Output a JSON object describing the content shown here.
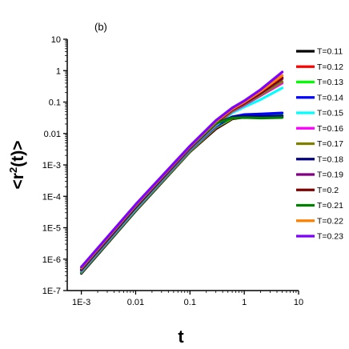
{
  "chart_data": {
    "type": "line",
    "panel_label": "(b)",
    "xlabel": "t",
    "ylabel": "<r²(t)>",
    "ylabel_parts": {
      "base": "<r",
      "sup": "2",
      "tail": "(t)>"
    },
    "x_scale": "log",
    "y_scale": "log",
    "xlim": [
      0.00055,
      10
    ],
    "ylim": [
      1e-07,
      10
    ],
    "x_ticks": [
      0.001,
      0.01,
      0.1,
      1,
      10
    ],
    "x_tick_labels": [
      "1E-3",
      "0.01",
      "0.1",
      "1",
      "10"
    ],
    "y_ticks": [
      1e-07,
      1e-06,
      1e-05,
      0.0001,
      0.001,
      0.01,
      0.1,
      1,
      10
    ],
    "y_tick_labels": [
      "1E-7",
      "1E-6",
      "1E-5",
      "1E-4",
      "1E-3",
      "0.01",
      "0.1",
      "1",
      "10"
    ],
    "grid": false,
    "legend_position": "right",
    "x": [
      0.001,
      0.01,
      0.1,
      0.3,
      0.6,
      1,
      2,
      5
    ],
    "series": [
      {
        "name": "T=0.11",
        "color": "#000000",
        "values": [
          3.5e-07,
          3.4e-05,
          0.0026,
          0.014,
          0.029,
          0.033,
          0.033,
          0.033
        ]
      },
      {
        "name": "T=0.12",
        "color": "#ff0000",
        "values": [
          3.7e-07,
          3.6e-05,
          0.0027,
          0.015,
          0.03,
          0.034,
          0.035,
          0.036
        ]
      },
      {
        "name": "T=0.13",
        "color": "#00ff00",
        "values": [
          3.8e-07,
          3.7e-05,
          0.0028,
          0.016,
          0.031,
          0.036,
          0.037,
          0.038
        ]
      },
      {
        "name": "T=0.14",
        "color": "#0000ff",
        "values": [
          4e-07,
          3.9e-05,
          0.003,
          0.017,
          0.034,
          0.04,
          0.042,
          0.045
        ]
      },
      {
        "name": "T=0.15",
        "color": "#00ffff",
        "values": [
          4.1e-07,
          4e-05,
          0.0031,
          0.018,
          0.045,
          0.07,
          0.12,
          0.28
        ]
      },
      {
        "name": "T=0.16",
        "color": "#ff00ff",
        "values": [
          4.3e-07,
          4.2e-05,
          0.0032,
          0.019,
          0.05,
          0.08,
          0.16,
          0.4
        ]
      },
      {
        "name": "T=0.17",
        "color": "#808000",
        "values": [
          4.4e-07,
          4.3e-05,
          0.0033,
          0.02,
          0.052,
          0.085,
          0.17,
          0.45
        ]
      },
      {
        "name": "T=0.18",
        "color": "#000080",
        "values": [
          4.6e-07,
          4.5e-05,
          0.0034,
          0.021,
          0.033,
          0.035,
          0.035,
          0.036
        ]
      },
      {
        "name": "T=0.19",
        "color": "#800080",
        "values": [
          4.8e-07,
          4.7e-05,
          0.0035,
          0.022,
          0.056,
          0.09,
          0.19,
          0.55
        ]
      },
      {
        "name": "T=0.2",
        "color": "#800000",
        "values": [
          5e-07,
          4.9e-05,
          0.0036,
          0.023,
          0.058,
          0.095,
          0.2,
          0.6
        ]
      },
      {
        "name": "T=0.21",
        "color": "#008000",
        "values": [
          5.1e-07,
          5e-05,
          0.0037,
          0.021,
          0.031,
          0.032,
          0.031,
          0.032
        ]
      },
      {
        "name": "T=0.22",
        "color": "#ff8000",
        "values": [
          5.3e-07,
          5.2e-05,
          0.0038,
          0.024,
          0.06,
          0.1,
          0.22,
          0.7
        ]
      },
      {
        "name": "T=0.23",
        "color": "#8000ff",
        "values": [
          5.6e-07,
          5.5e-05,
          0.004,
          0.026,
          0.065,
          0.11,
          0.25,
          0.9
        ]
      }
    ]
  }
}
